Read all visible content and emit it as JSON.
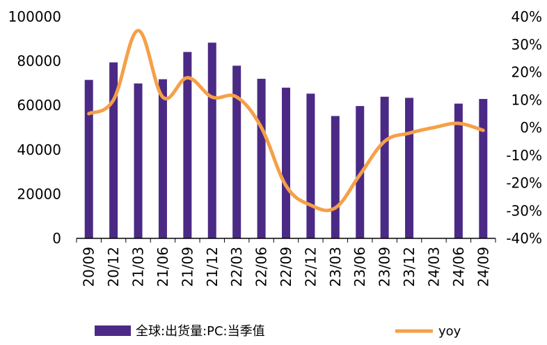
{
  "chart_data": {
    "type": "bar",
    "categories": [
      "20/09",
      "20/12",
      "21/03",
      "21/06",
      "21/09",
      "21/12",
      "22/03",
      "22/06",
      "22/09",
      "22/12",
      "23/03",
      "23/06",
      "23/09",
      "23/12",
      "24/03",
      "24/06",
      "24/09"
    ],
    "series": [
      {
        "name": "全球:出货量:PC:当季值",
        "type": "bar",
        "axis": "left",
        "values": [
          71500,
          79400,
          69900,
          71800,
          84100,
          88300,
          77900,
          72000,
          68000,
          65300,
          55200,
          59700,
          63900,
          63400,
          null,
          60800,
          62900
        ]
      },
      {
        "name": "yoy",
        "type": "line",
        "axis": "right",
        "values": [
          5,
          10,
          35,
          11,
          18,
          11,
          11,
          0,
          -21,
          -28,
          -29,
          -17,
          -5,
          -2,
          0,
          1.5,
          -1
        ]
      }
    ],
    "y_left": {
      "lim": [
        0,
        100000
      ],
      "ticks": [
        "0",
        "20000",
        "40000",
        "60000",
        "80000",
        "100000"
      ]
    },
    "y_right": {
      "lim": [
        -40,
        40
      ],
      "ticks": [
        "-40%",
        "-30%",
        "-20%",
        "-10%",
        "0%",
        "10%",
        "20%",
        "30%",
        "40%"
      ]
    },
    "legend_position": "bottom",
    "grid": false,
    "colors": {
      "bar": "#4B2A86",
      "line": "#F5A048"
    }
  }
}
